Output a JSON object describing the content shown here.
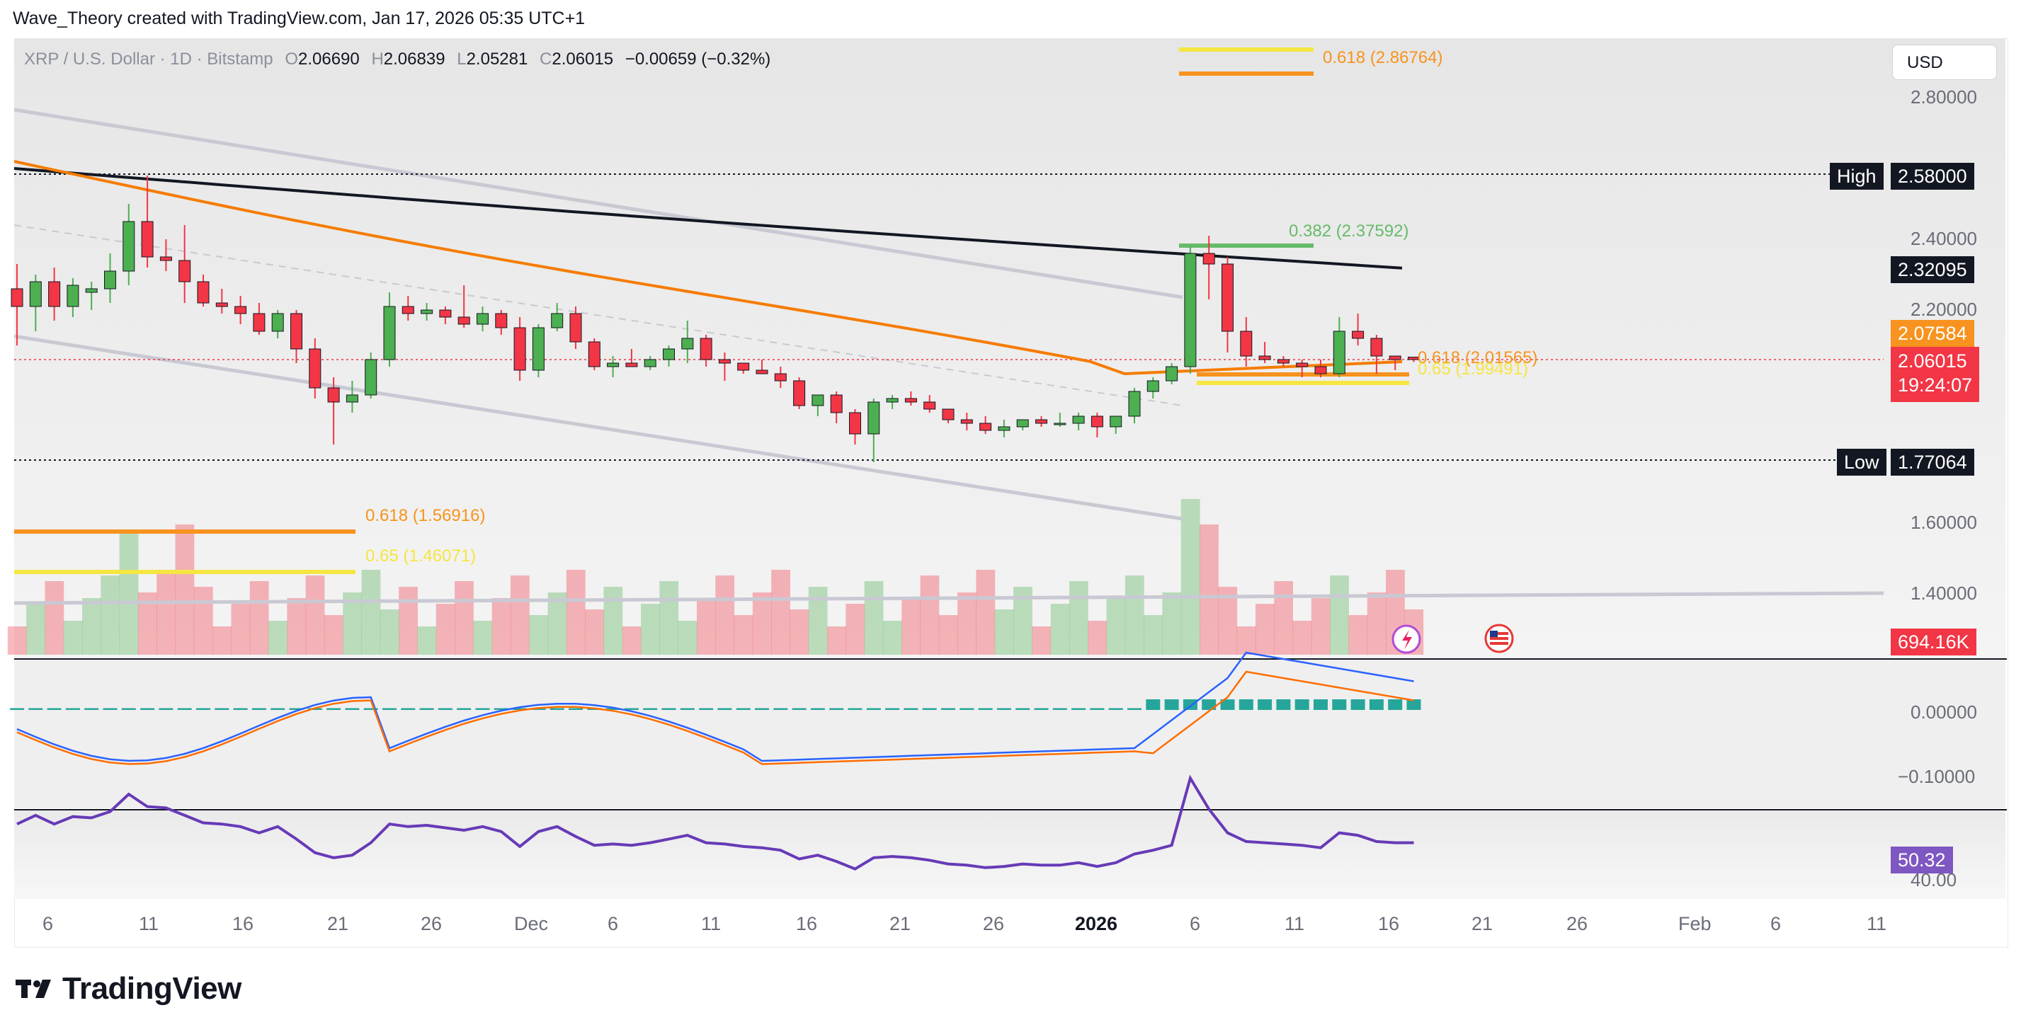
{
  "header": {
    "attribution": "Wave_Theory created with TradingView.com, Jan 17, 2026 05:35 UTC+1"
  },
  "legend": {
    "symbol": "XRP / U.S. Dollar · 1D · Bitstamp",
    "open_key": "O",
    "open": "2.06690",
    "high_key": "H",
    "high": "2.06839",
    "low_key": "L",
    "low": "2.05281",
    "close_key": "C",
    "close": "2.06015",
    "change": "−0.00659 (−0.32%)"
  },
  "currency_button": "USD",
  "price_axis": [
    "2.80000",
    "2.40000",
    "2.20000",
    "1.60000",
    "1.40000"
  ],
  "macd_axis": [
    "0.00000",
    "−0.10000"
  ],
  "rsi_axis": [
    "40.00"
  ],
  "price_tags": {
    "high_label": "High",
    "high_value": "2.58000",
    "low_label": "Low",
    "low_value": "1.77064",
    "ma_black": "2.32095",
    "ma_orange": "2.07584",
    "last_price": "2.06015",
    "countdown": "19:24:07",
    "volume": "694.16K",
    "rsi": "50.32"
  },
  "fib_labels": {
    "top": "0.618 (2.86764)",
    "mid": "0.382 (2.37592)",
    "near1": "0.618 (2.01565)",
    "near2": "0.65 (1.99491)",
    "vol1": "0.618 (1.56916)",
    "vol2": "0.65 (1.46071)"
  },
  "dates": [
    "6",
    "11",
    "16",
    "21",
    "26",
    "Dec",
    "6",
    "11",
    "16",
    "21",
    "26",
    "2026",
    "6",
    "11",
    "16",
    "21",
    "26",
    "Feb",
    "6",
    "11"
  ],
  "brand": "TradingView",
  "colors": {
    "up": "#4caf50",
    "down": "#f23645",
    "ma100": "#f57c00",
    "ma200": "#131722",
    "rsi": "#7e57c2",
    "macd": "#2962ff",
    "signal": "#ff6d00"
  },
  "chart_data": {
    "type": "candlestick",
    "title": "XRP / U.S. Dollar · 1D · Bitstamp",
    "candles": [
      {
        "o": 2.26,
        "h": 2.33,
        "l": 2.1,
        "c": 2.21
      },
      {
        "o": 2.21,
        "h": 2.3,
        "l": 2.14,
        "c": 2.28
      },
      {
        "o": 2.28,
        "h": 2.32,
        "l": 2.17,
        "c": 2.21
      },
      {
        "o": 2.21,
        "h": 2.29,
        "l": 2.18,
        "c": 2.27
      },
      {
        "o": 2.25,
        "h": 2.28,
        "l": 2.2,
        "c": 2.26
      },
      {
        "o": 2.26,
        "h": 2.36,
        "l": 2.22,
        "c": 2.31
      },
      {
        "o": 2.31,
        "h": 2.5,
        "l": 2.27,
        "c": 2.45
      },
      {
        "o": 2.45,
        "h": 2.58,
        "l": 2.32,
        "c": 2.35
      },
      {
        "o": 2.35,
        "h": 2.4,
        "l": 2.31,
        "c": 2.34
      },
      {
        "o": 2.34,
        "h": 2.44,
        "l": 2.22,
        "c": 2.28
      },
      {
        "o": 2.28,
        "h": 2.3,
        "l": 2.21,
        "c": 2.22
      },
      {
        "o": 2.22,
        "h": 2.26,
        "l": 2.19,
        "c": 2.21
      },
      {
        "o": 2.21,
        "h": 2.24,
        "l": 2.16,
        "c": 2.19
      },
      {
        "o": 2.19,
        "h": 2.22,
        "l": 2.13,
        "c": 2.14
      },
      {
        "o": 2.14,
        "h": 2.2,
        "l": 2.12,
        "c": 2.19
      },
      {
        "o": 2.19,
        "h": 2.2,
        "l": 2.05,
        "c": 2.09
      },
      {
        "o": 2.09,
        "h": 2.12,
        "l": 1.95,
        "c": 1.98
      },
      {
        "o": 1.98,
        "h": 2.01,
        "l": 1.82,
        "c": 1.94
      },
      {
        "o": 1.94,
        "h": 2.0,
        "l": 1.91,
        "c": 1.96
      },
      {
        "o": 1.96,
        "h": 2.08,
        "l": 1.95,
        "c": 2.06
      },
      {
        "o": 2.06,
        "h": 2.25,
        "l": 2.04,
        "c": 2.21
      },
      {
        "o": 2.21,
        "h": 2.24,
        "l": 2.17,
        "c": 2.19
      },
      {
        "o": 2.19,
        "h": 2.22,
        "l": 2.17,
        "c": 2.2
      },
      {
        "o": 2.2,
        "h": 2.21,
        "l": 2.16,
        "c": 2.18
      },
      {
        "o": 2.18,
        "h": 2.27,
        "l": 2.15,
        "c": 2.16
      },
      {
        "o": 2.16,
        "h": 2.21,
        "l": 2.14,
        "c": 2.19
      },
      {
        "o": 2.19,
        "h": 2.2,
        "l": 2.13,
        "c": 2.15
      },
      {
        "o": 2.15,
        "h": 2.18,
        "l": 2.0,
        "c": 2.03
      },
      {
        "o": 2.03,
        "h": 2.16,
        "l": 2.01,
        "c": 2.15
      },
      {
        "o": 2.15,
        "h": 2.22,
        "l": 2.14,
        "c": 2.19
      },
      {
        "o": 2.19,
        "h": 2.21,
        "l": 2.09,
        "c": 2.11
      },
      {
        "o": 2.11,
        "h": 2.12,
        "l": 2.03,
        "c": 2.04
      },
      {
        "o": 2.04,
        "h": 2.07,
        "l": 2.01,
        "c": 2.05
      },
      {
        "o": 2.05,
        "h": 2.09,
        "l": 2.04,
        "c": 2.04
      },
      {
        "o": 2.04,
        "h": 2.07,
        "l": 2.03,
        "c": 2.06
      },
      {
        "o": 2.06,
        "h": 2.1,
        "l": 2.04,
        "c": 2.09
      },
      {
        "o": 2.09,
        "h": 2.17,
        "l": 2.05,
        "c": 2.12
      },
      {
        "o": 2.12,
        "h": 2.13,
        "l": 2.04,
        "c": 2.06
      },
      {
        "o": 2.06,
        "h": 2.08,
        "l": 2.0,
        "c": 2.05
      },
      {
        "o": 2.05,
        "h": 2.05,
        "l": 2.02,
        "c": 2.03
      },
      {
        "o": 2.03,
        "h": 2.06,
        "l": 2.02,
        "c": 2.02
      },
      {
        "o": 2.02,
        "h": 2.04,
        "l": 1.98,
        "c": 2.0
      },
      {
        "o": 2.0,
        "h": 2.01,
        "l": 1.92,
        "c": 1.93
      },
      {
        "o": 1.93,
        "h": 1.96,
        "l": 1.9,
        "c": 1.96
      },
      {
        "o": 1.96,
        "h": 1.97,
        "l": 1.88,
        "c": 1.91
      },
      {
        "o": 1.91,
        "h": 1.92,
        "l": 1.82,
        "c": 1.85
      },
      {
        "o": 1.85,
        "h": 1.95,
        "l": 1.77,
        "c": 1.94
      },
      {
        "o": 1.94,
        "h": 1.96,
        "l": 1.92,
        "c": 1.95
      },
      {
        "o": 1.95,
        "h": 1.97,
        "l": 1.93,
        "c": 1.94
      },
      {
        "o": 1.94,
        "h": 1.96,
        "l": 1.91,
        "c": 1.92
      },
      {
        "o": 1.92,
        "h": 1.92,
        "l": 1.88,
        "c": 1.89
      },
      {
        "o": 1.89,
        "h": 1.91,
        "l": 1.86,
        "c": 1.88
      },
      {
        "o": 1.88,
        "h": 1.9,
        "l": 1.85,
        "c": 1.86
      },
      {
        "o": 1.86,
        "h": 1.89,
        "l": 1.84,
        "c": 1.87
      },
      {
        "o": 1.87,
        "h": 1.89,
        "l": 1.86,
        "c": 1.89
      },
      {
        "o": 1.89,
        "h": 1.9,
        "l": 1.87,
        "c": 1.88
      },
      {
        "o": 1.88,
        "h": 1.91,
        "l": 1.87,
        "c": 1.88
      },
      {
        "o": 1.88,
        "h": 1.91,
        "l": 1.86,
        "c": 1.9
      },
      {
        "o": 1.9,
        "h": 1.91,
        "l": 1.84,
        "c": 1.87
      },
      {
        "o": 1.87,
        "h": 1.9,
        "l": 1.85,
        "c": 1.9
      },
      {
        "o": 1.9,
        "h": 1.98,
        "l": 1.88,
        "c": 1.97
      },
      {
        "o": 1.97,
        "h": 2.01,
        "l": 1.95,
        "c": 2.0
      },
      {
        "o": 2.0,
        "h": 2.05,
        "l": 1.99,
        "c": 2.04
      },
      {
        "o": 2.04,
        "h": 2.38,
        "l": 2.02,
        "c": 2.36
      },
      {
        "o": 2.36,
        "h": 2.41,
        "l": 2.23,
        "c": 2.33
      },
      {
        "o": 2.33,
        "h": 2.35,
        "l": 2.08,
        "c": 2.14
      },
      {
        "o": 2.14,
        "h": 2.18,
        "l": 2.04,
        "c": 2.07
      },
      {
        "o": 2.07,
        "h": 2.11,
        "l": 2.05,
        "c": 2.06
      },
      {
        "o": 2.06,
        "h": 2.07,
        "l": 2.04,
        "c": 2.05
      },
      {
        "o": 2.05,
        "h": 2.06,
        "l": 2.01,
        "c": 2.04
      },
      {
        "o": 2.04,
        "h": 2.06,
        "l": 2.01,
        "c": 2.02
      },
      {
        "o": 2.02,
        "h": 2.18,
        "l": 2.01,
        "c": 2.14
      },
      {
        "o": 2.14,
        "h": 2.19,
        "l": 2.1,
        "c": 2.12
      },
      {
        "o": 2.12,
        "h": 2.13,
        "l": 2.02,
        "c": 2.07
      },
      {
        "o": 2.07,
        "h": 2.07,
        "l": 2.03,
        "c": 2.06
      },
      {
        "o": 2.067,
        "h": 2.068,
        "l": 2.053,
        "c": 2.06
      }
    ],
    "ylim": [
      1.3,
      2.9
    ]
  }
}
